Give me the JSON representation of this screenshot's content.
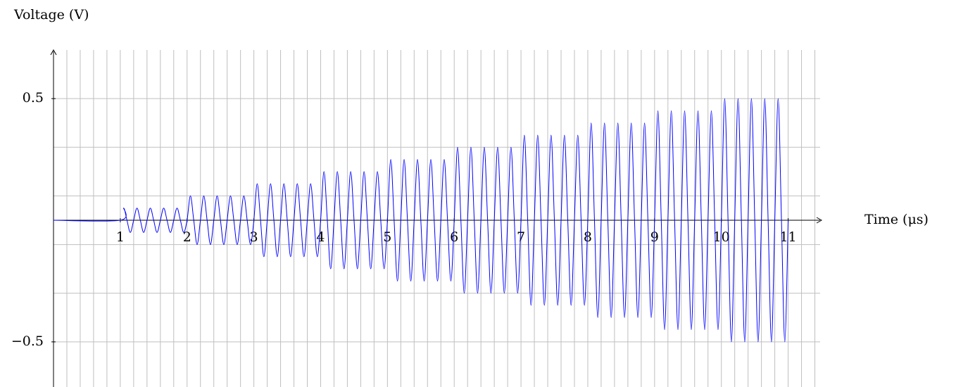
{
  "chart_data": {
    "type": "line",
    "x_label": "Time (μs)",
    "y_label": "Voltage (V)",
    "xlim": [
      0,
      11.5
    ],
    "ylim": [
      -0.7,
      0.7
    ],
    "xticks": [
      1,
      2,
      3,
      4,
      5,
      6,
      7,
      8,
      9,
      10,
      11
    ],
    "yticks": [
      {
        "value": -0.5,
        "label": "−0.5"
      },
      0.5
    ],
    "xgrid": [
      0.2,
      0.4,
      0.6,
      0.8,
      1,
      1.2,
      1.4,
      1.6,
      1.8,
      2,
      2.2,
      2.4,
      2.6,
      2.8,
      3,
      3.2,
      3.4,
      3.6,
      3.8,
      4,
      4.2,
      4.4,
      4.6,
      4.8,
      5,
      5.2,
      5.4,
      5.6,
      5.8,
      6,
      6.2,
      6.4,
      6.6,
      6.8,
      7,
      7.2,
      7.4,
      7.6,
      7.8,
      8,
      8.2,
      8.4,
      8.6,
      8.8,
      9,
      9.2,
      9.4,
      9.6,
      9.8,
      10,
      10.2,
      10.4,
      10.6,
      10.8,
      11,
      11.2,
      11.4
    ],
    "ygrid": [
      -0.5,
      -0.3,
      -0.1,
      0.1,
      0.3,
      0.5
    ],
    "grid": true,
    "x": [
      0,
      1,
      1.05,
      1.1,
      1.15,
      1.2,
      1.25,
      1.3,
      1.35,
      1.4,
      1.45,
      1.5,
      1.55,
      1.6,
      1.65,
      1.7,
      1.75,
      1.8,
      1.85,
      1.9,
      1.95,
      2,
      2.05,
      2.1,
      2.15,
      2.2,
      2.25,
      2.3,
      2.35,
      2.4,
      2.45,
      2.5,
      2.55,
      2.6,
      2.65,
      2.7,
      2.75,
      2.8,
      2.85,
      2.9,
      2.95,
      3,
      3.05,
      3.1,
      3.15,
      3.2,
      3.25,
      3.3,
      3.35,
      3.4,
      3.45,
      3.5,
      3.55,
      3.6,
      3.65,
      3.7,
      3.75,
      3.8,
      3.85,
      3.9,
      3.95,
      4,
      4.05,
      4.1,
      4.15,
      4.2,
      4.25,
      4.3,
      4.35,
      4.4,
      4.45,
      4.5,
      4.55,
      4.6,
      4.65,
      4.7,
      4.75,
      4.8,
      4.85,
      4.9,
      4.95,
      5,
      5.05,
      5.1,
      5.15,
      5.2,
      5.25,
      5.3,
      5.35,
      5.4,
      5.45,
      5.5,
      5.55,
      5.6,
      5.65,
      5.7,
      5.75,
      5.8,
      5.85,
      5.9,
      5.95,
      6,
      6.05,
      6.1,
      6.15,
      6.2,
      6.25,
      6.3,
      6.35,
      6.4,
      6.45,
      6.5,
      6.55,
      6.6,
      6.65,
      6.7,
      6.75,
      6.8,
      6.85,
      6.9,
      6.95,
      7,
      7.05,
      7.1,
      7.15,
      7.2,
      7.25,
      7.3,
      7.35,
      7.4,
      7.45,
      7.5,
      7.55,
      7.6,
      7.65,
      7.7,
      7.75,
      7.8,
      7.85,
      7.9,
      7.95,
      8,
      8.05,
      8.1,
      8.15,
      8.2,
      8.25,
      8.3,
      8.35,
      8.4,
      8.45,
      8.5,
      8.55,
      8.6,
      8.65,
      8.7,
      8.75,
      8.8,
      8.85,
      8.9,
      8.95,
      9,
      9.05,
      9.1,
      9.15,
      9.2,
      9.25,
      9.3,
      9.35,
      9.4,
      9.45,
      9.5,
      9.55,
      9.6,
      9.65,
      9.7,
      9.75,
      9.8,
      9.85,
      9.9,
      9.95,
      10,
      10.05,
      10.1,
      10.15,
      10.2,
      10.25,
      10.3,
      10.35,
      10.4,
      10.45,
      10.5,
      10.55,
      10.6,
      10.65,
      10.7,
      10.75,
      10.8,
      10.85,
      10.9,
      10.95,
      11
    ],
    "series": [
      {
        "color": "#0000ff",
        "values": [
          0,
          0,
          0.05,
          0,
          -0.05,
          0,
          0.05,
          0,
          -0.05,
          0,
          0.05,
          0,
          -0.05,
          0,
          0.05,
          0,
          -0.05,
          0,
          0.05,
          0,
          -0.05,
          0,
          0.1,
          0,
          -0.1,
          0,
          0.1,
          0,
          -0.1,
          0,
          0.1,
          0,
          -0.1,
          0,
          0.1,
          0,
          -0.1,
          0,
          0.1,
          0,
          -0.1,
          0,
          0.15,
          0,
          -0.15,
          0,
          0.15,
          0,
          -0.15,
          0,
          0.15,
          0,
          -0.15,
          0,
          0.15,
          0,
          -0.15,
          0,
          0.15,
          0,
          -0.15,
          0,
          0.2,
          0,
          -0.2,
          0,
          0.2,
          0,
          -0.2,
          0,
          0.2,
          0,
          -0.2,
          0,
          0.2,
          0,
          -0.2,
          0,
          0.2,
          0,
          -0.2,
          0,
          0.25,
          0,
          -0.25,
          0,
          0.25,
          0,
          -0.25,
          0,
          0.25,
          0,
          -0.25,
          0,
          0.25,
          0,
          -0.25,
          0,
          0.25,
          0,
          -0.25,
          0,
          0.3,
          0,
          -0.3,
          0,
          0.3,
          0,
          -0.3,
          0,
          0.3,
          0,
          -0.3,
          0,
          0.3,
          0,
          -0.3,
          0,
          0.3,
          0,
          -0.3,
          0,
          0.35,
          0,
          -0.35,
          0,
          0.35,
          0,
          -0.35,
          0,
          0.35,
          0,
          -0.35,
          0,
          0.35,
          0,
          -0.35,
          0,
          0.35,
          0,
          -0.35,
          0,
          0.4,
          0,
          -0.4,
          0,
          0.4,
          0,
          -0.4,
          0,
          0.4,
          0,
          -0.4,
          0,
          0.4,
          0,
          -0.4,
          0,
          0.4,
          0,
          -0.4,
          0,
          0.45,
          0,
          -0.45,
          0,
          0.45,
          0,
          -0.45,
          0,
          0.45,
          0,
          -0.45,
          0,
          0.45,
          0,
          -0.45,
          0,
          0.45,
          0,
          -0.45,
          0,
          0.5,
          0,
          -0.5,
          0,
          0.5,
          0,
          -0.5,
          0,
          0.5,
          0,
          -0.5,
          0,
          0.5,
          0,
          -0.5,
          0,
          0.5,
          0,
          -0.5,
          0
        ]
      }
    ]
  }
}
